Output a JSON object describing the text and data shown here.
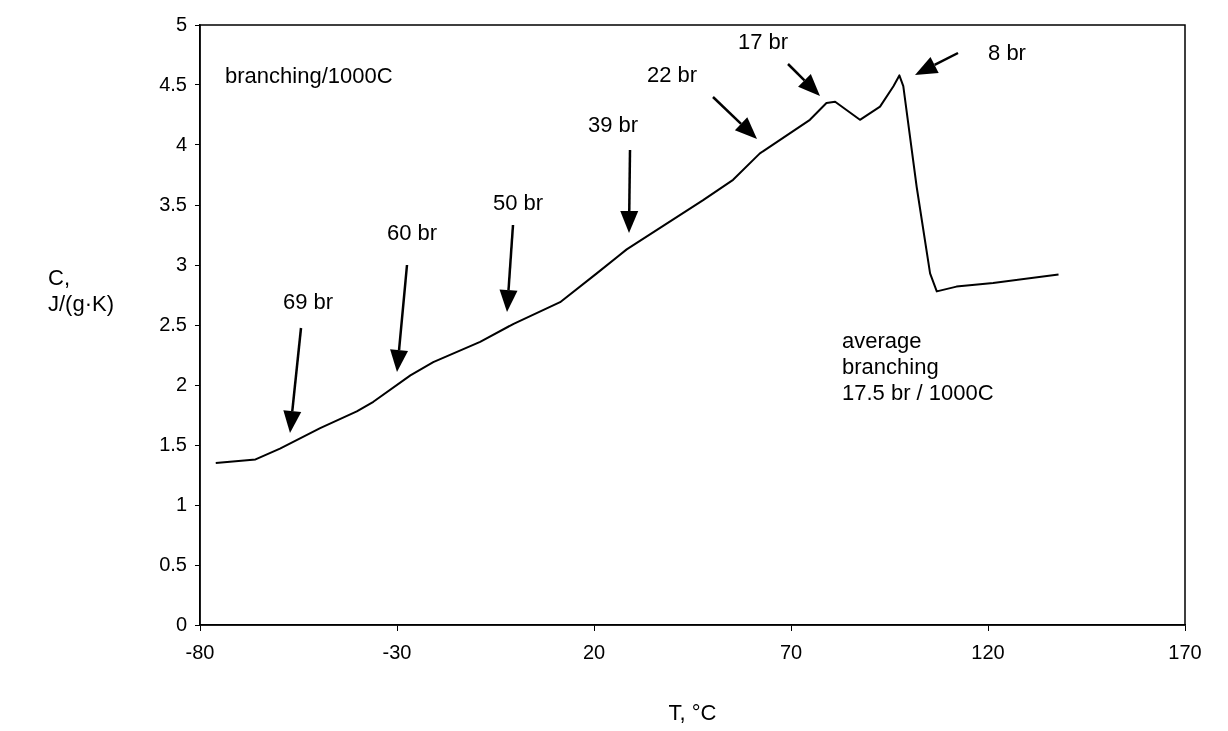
{
  "chart_data": {
    "type": "line",
    "xlabel": "T, °C",
    "ylabel": "C,\nJ/(g·K)",
    "xlim": [
      -80,
      170
    ],
    "xticks": [
      -80,
      -30,
      20,
      70,
      120,
      170
    ],
    "ylim": [
      0,
      5
    ],
    "yticks": [
      0,
      0.5,
      1,
      1.5,
      2,
      2.5,
      3,
      3.5,
      4,
      4.5,
      5
    ],
    "grid": false,
    "legend": false,
    "marker": "none",
    "line_style": "solid",
    "series": [
      {
        "color": "#000000",
        "x": [
          -76.0,
          -65.9,
          -59.7,
          -49.5,
          -40.2,
          -36.0,
          -26.6,
          -20.8,
          -8.9,
          -0.4,
          11.4,
          20.7,
          28.3,
          47.7,
          55.3,
          62.1,
          74.8,
          79.0,
          81.2,
          87.5,
          92.6,
          96.0,
          97.5,
          98.5,
          101.9,
          105.3,
          107.0,
          112.0,
          121.3,
          137.9
        ],
        "values": [
          1.35,
          1.38,
          1.47,
          1.64,
          1.78,
          1.86,
          2.08,
          2.19,
          2.36,
          2.51,
          2.69,
          2.93,
          3.13,
          3.54,
          3.71,
          3.93,
          4.21,
          4.35,
          4.36,
          4.21,
          4.32,
          4.49,
          4.58,
          4.49,
          3.65,
          2.93,
          2.78,
          2.82,
          2.85,
          2.92
        ]
      }
    ],
    "annotations": [
      "branching/1000C",
      "average\nbranching\n17.5 br / 1000C",
      "69 br",
      "60 br",
      "50 br",
      "39 br",
      "22 br",
      "17 br",
      "8 br"
    ]
  }
}
